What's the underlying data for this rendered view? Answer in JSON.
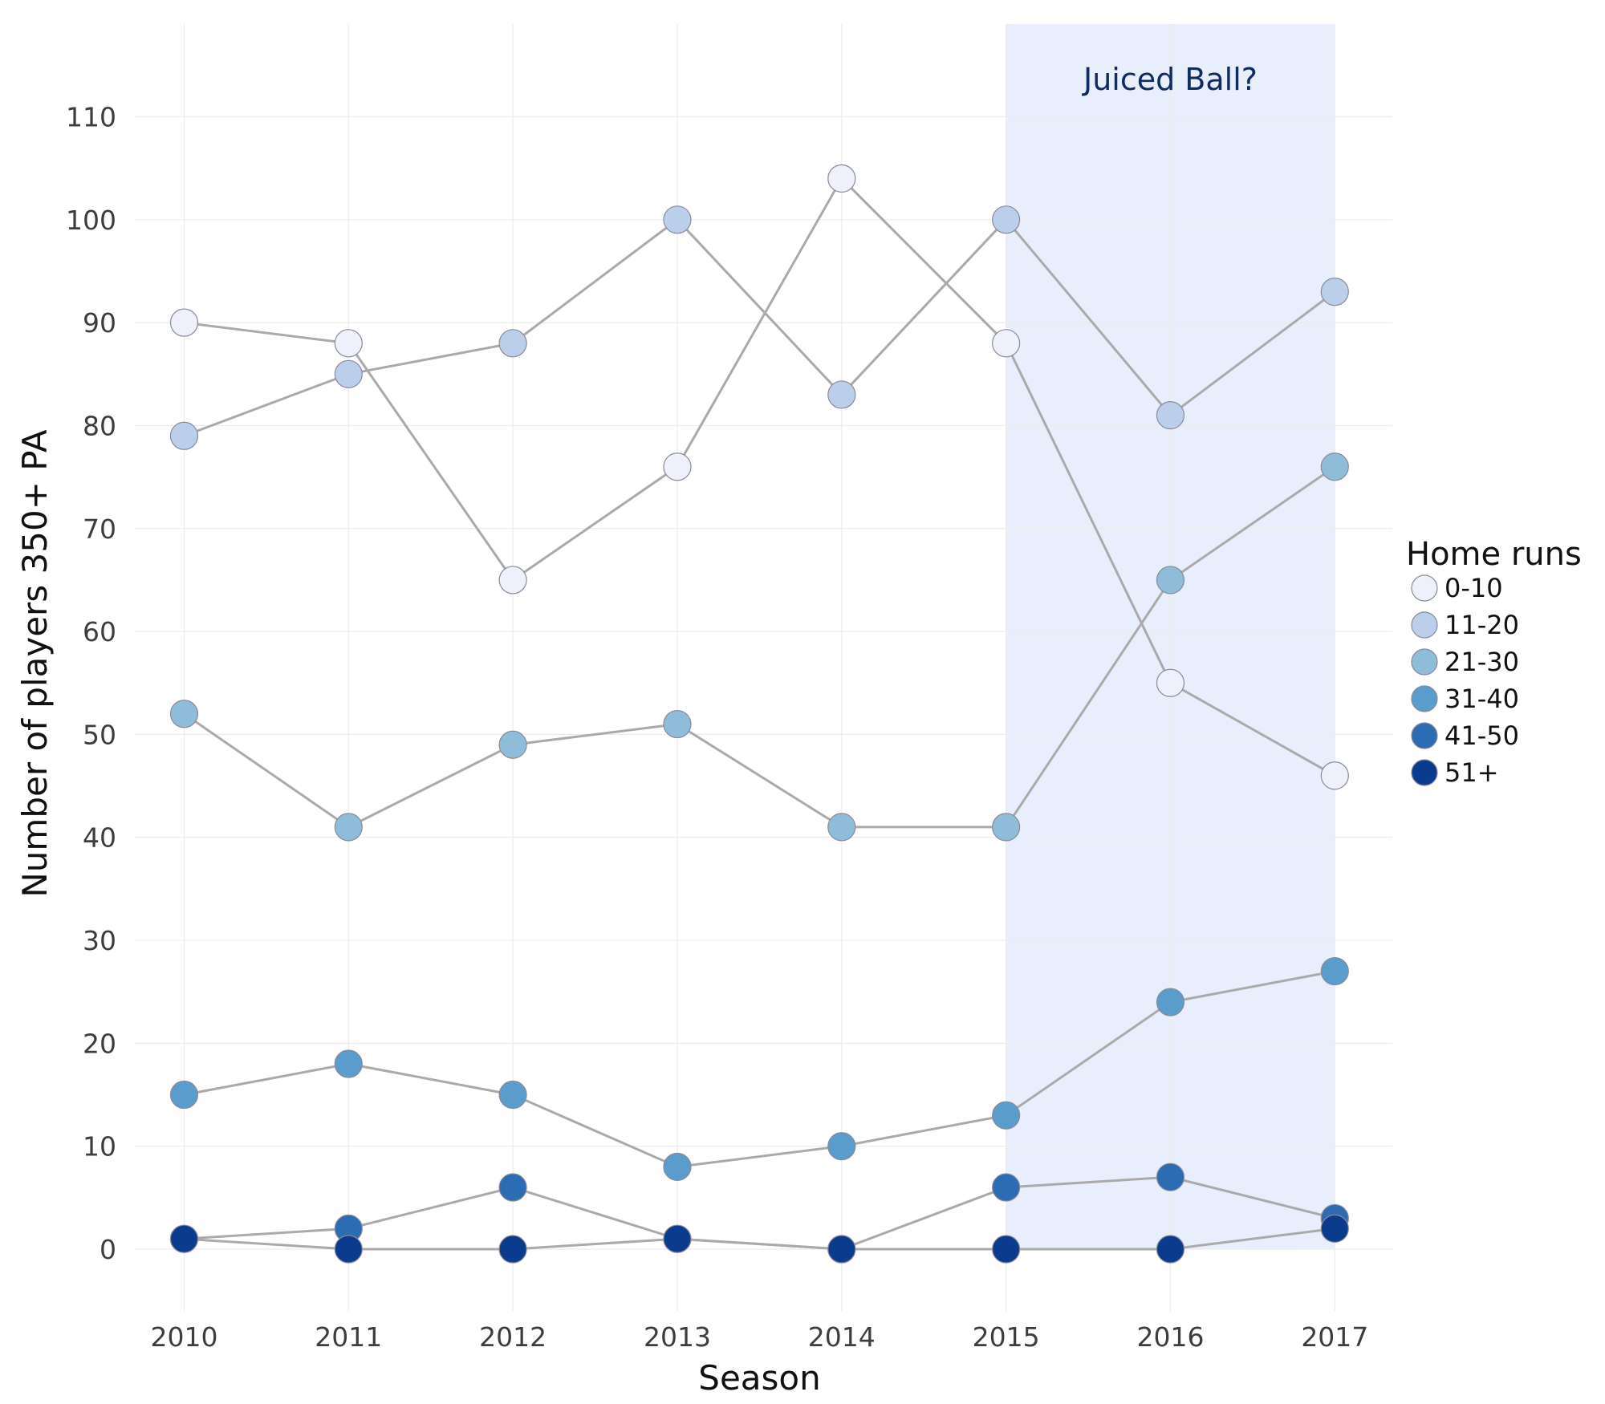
{
  "chart_data": {
    "type": "line",
    "xlabel": "Season",
    "ylabel": "Number of players 350+ PA",
    "x": [
      2010,
      2011,
      2012,
      2013,
      2014,
      2015,
      2016,
      2017
    ],
    "x_tick_labels": [
      "2010",
      "2011",
      "2012",
      "2013",
      "2014",
      "2015",
      "2016",
      "2017"
    ],
    "y_ticks": [
      0,
      10,
      20,
      30,
      40,
      50,
      60,
      70,
      80,
      90,
      100,
      110
    ],
    "ylim": [
      -6,
      119
    ],
    "xlim": [
      2009.7,
      2017.35
    ],
    "grid": true,
    "legend": {
      "title": "Home runs",
      "position": "right"
    },
    "highlight": {
      "x_start": 2015,
      "x_end": 2017,
      "y_start": 0,
      "y_end": 119,
      "label": "Juiced Ball?",
      "color": "#e8eefb",
      "text_color": "#0f2b63"
    },
    "line_color": "#aaaaaa",
    "series": [
      {
        "name": "0-10",
        "color": "#eef1fb",
        "values": [
          90,
          88,
          65,
          76,
          104,
          88,
          55,
          46
        ]
      },
      {
        "name": "11-20",
        "color": "#bccfea",
        "values": [
          79,
          85,
          88,
          100,
          83,
          100,
          81,
          93
        ]
      },
      {
        "name": "21-30",
        "color": "#8fbcd9",
        "values": [
          52,
          41,
          49,
          51,
          41,
          41,
          65,
          76
        ]
      },
      {
        "name": "31-40",
        "color": "#5a9ccc",
        "values": [
          15,
          18,
          15,
          8,
          10,
          13,
          24,
          27
        ]
      },
      {
        "name": "41-50",
        "color": "#2b6cb2",
        "values": [
          1,
          2,
          6,
          1,
          0,
          6,
          7,
          3
        ]
      },
      {
        "name": "51+",
        "color": "#0b3b8c",
        "values": [
          1,
          0,
          0,
          1,
          0,
          0,
          0,
          2
        ]
      }
    ]
  }
}
